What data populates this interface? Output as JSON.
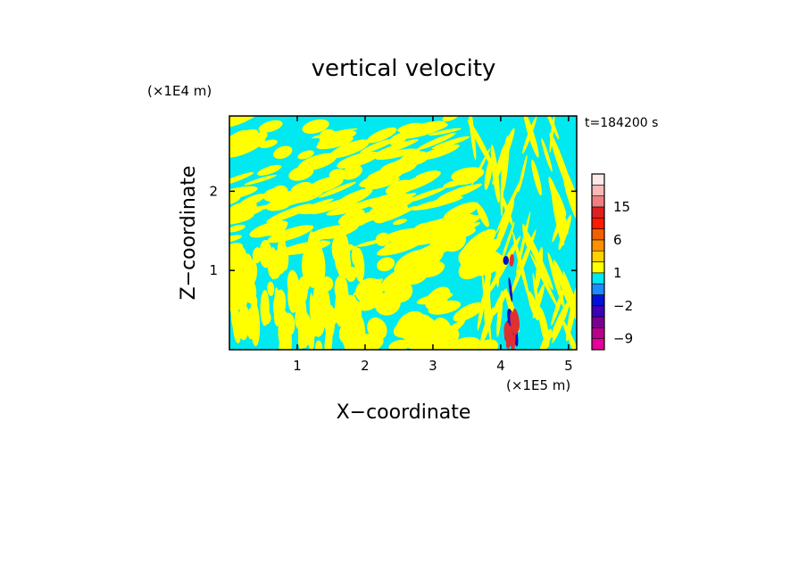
{
  "chart_data": {
    "type": "heatmap",
    "title": "vertical velocity",
    "xlabel": "X−coordinate",
    "ylabel": "Z−coordinate",
    "x_unit": "(×1E5 m)",
    "y_unit": "(×1E4 m)",
    "time_label": "t=184200 s",
    "xlim": [
      0,
      5.12
    ],
    "ylim": [
      0,
      2.95
    ],
    "x_ticks": [
      1,
      2,
      3,
      4,
      5
    ],
    "x_tick_labels": [
      "1",
      "2",
      "3",
      "4",
      "5"
    ],
    "y_ticks": [
      1,
      2
    ],
    "y_tick_labels": [
      "1",
      "2"
    ],
    "grid": false,
    "colorbar": {
      "levels": [
        "−9",
        "−2",
        "1",
        "6",
        "15"
      ],
      "colors": [
        "#e8009a",
        "#b8008c",
        "#7a0090",
        "#3e00b8",
        "#0010d8",
        "#1a8cff",
        "#00e8f0",
        "#ffff00",
        "#ffd000",
        "#ff9000",
        "#f06000",
        "#ff1a00",
        "#e02020",
        "#f08080",
        "#f8b8b8",
        "#ffe8e8"
      ],
      "colors_by_level_index": [
        "#e8009a",
        "#b8008c",
        "#7a0090",
        "#3e00b8",
        "#0010d8",
        "#1a8cff",
        "#00e8f0",
        "#ffff00",
        "#ffd000",
        "#ff9000",
        "#f06000",
        "#ff1a00",
        "#e02020",
        "#f08080",
        "#f8b8b8",
        "#ffe8e8"
      ]
    },
    "background_field": {
      "positive_color": "#ffff00",
      "negative_color": "#00e8f0",
      "strong_up_color": "#e03030",
      "strong_down_color": "#1010c0"
    }
  }
}
